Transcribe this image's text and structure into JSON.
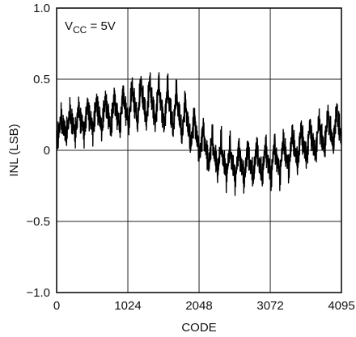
{
  "chart_data": {
    "type": "line",
    "title": "",
    "xlabel": "CODE",
    "ylabel": "INL (LSB)",
    "xlim": [
      0,
      4095
    ],
    "ylim": [
      -1.0,
      1.0
    ],
    "x_ticks": [
      0,
      1024,
      2048,
      3072,
      4095
    ],
    "x_tick_labels": [
      "0",
      "1024",
      "2048",
      "3072",
      "4095"
    ],
    "y_ticks": [
      1.0,
      0.5,
      0,
      -0.5,
      -1.0
    ],
    "y_tick_labels": [
      "1.0",
      "0.5",
      "0",
      "−0.5",
      "−1.0"
    ],
    "grid": true,
    "legend": "none",
    "annotation": {
      "main": "V",
      "subscript": "CC",
      "rest": " = 5V"
    },
    "line_color": "#000000",
    "series": [
      {
        "x": [
          0,
          128,
          256,
          384,
          512,
          640,
          768,
          896,
          1024,
          1152,
          1280,
          1408,
          1536,
          1664,
          1792,
          1920,
          2048,
          2176,
          2304,
          2432,
          2560,
          2688,
          2816,
          2944,
          3072,
          3200,
          3328,
          3456,
          3584,
          3712,
          3840,
          3968,
          4095
        ],
        "values": [
          0.12,
          0.16,
          0.19,
          0.21,
          0.22,
          0.23,
          0.24,
          0.26,
          0.29,
          0.31,
          0.32,
          0.32,
          0.3,
          0.27,
          0.22,
          0.15,
          0.07,
          -0.01,
          -0.06,
          -0.09,
          -0.1,
          -0.11,
          -0.11,
          -0.1,
          -0.09,
          -0.07,
          -0.04,
          0.0,
          0.04,
          0.07,
          0.1,
          0.13,
          0.15
        ],
        "ripple_amplitude": [
          0.1,
          0.11,
          0.12,
          0.13,
          0.14,
          0.15,
          0.16,
          0.17,
          0.18,
          0.19,
          0.2,
          0.2,
          0.2,
          0.2,
          0.19,
          0.18,
          0.16,
          0.15,
          0.15,
          0.15,
          0.16,
          0.16,
          0.16,
          0.16,
          0.16,
          0.16,
          0.16,
          0.16,
          0.16,
          0.16,
          0.16,
          0.17,
          0.18
        ],
        "ripple_period_codes": 128
      }
    ]
  }
}
